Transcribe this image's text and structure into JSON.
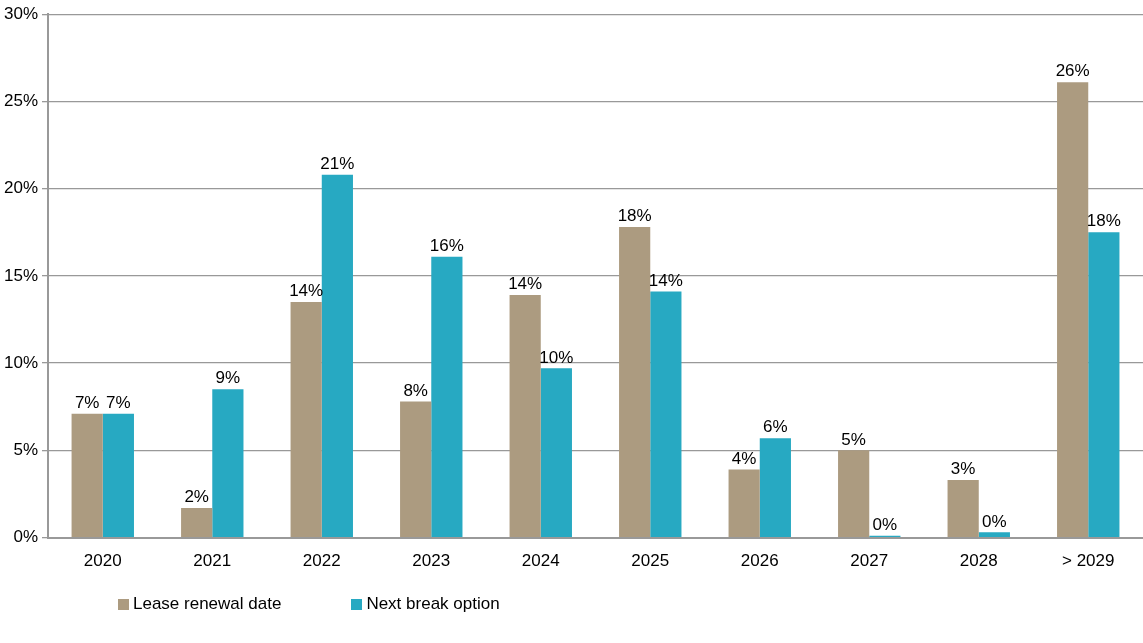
{
  "chart_data": {
    "type": "bar",
    "categories": [
      "2020",
      "2021",
      "2022",
      "2023",
      "2024",
      "2025",
      "2026",
      "2027",
      "2028",
      "> 2029"
    ],
    "series": [
      {
        "name": "Lease renewal date",
        "color": "#ac9b80",
        "values": [
          7.1,
          1.7,
          13.5,
          7.8,
          13.9,
          17.8,
          3.9,
          5.0,
          3.3,
          26.1
        ],
        "value_labels": [
          "7%",
          "2%",
          "14%",
          "8%",
          "14%",
          "18%",
          "4%",
          "5%",
          "3%",
          "26%"
        ]
      },
      {
        "name": "Next break option",
        "color": "#27a9c2",
        "values": [
          7.1,
          8.5,
          20.8,
          16.1,
          9.7,
          14.1,
          5.7,
          0.1,
          0.3,
          17.5
        ],
        "value_labels": [
          "7%",
          "9%",
          "21%",
          "16%",
          "10%",
          "14%",
          "6%",
          "0%",
          "0%",
          "18%"
        ]
      }
    ],
    "ylim": [
      0,
      30
    ],
    "yticks": [
      {
        "value": 0,
        "label": "0%"
      },
      {
        "value": 5,
        "label": "5%"
      },
      {
        "value": 10,
        "label": "10%"
      },
      {
        "value": 15,
        "label": "15%"
      },
      {
        "value": 20,
        "label": "20%"
      },
      {
        "value": 25,
        "label": "25%"
      },
      {
        "value": 30,
        "label": "30%"
      }
    ],
    "grid": "y",
    "legend": "bottom left"
  }
}
